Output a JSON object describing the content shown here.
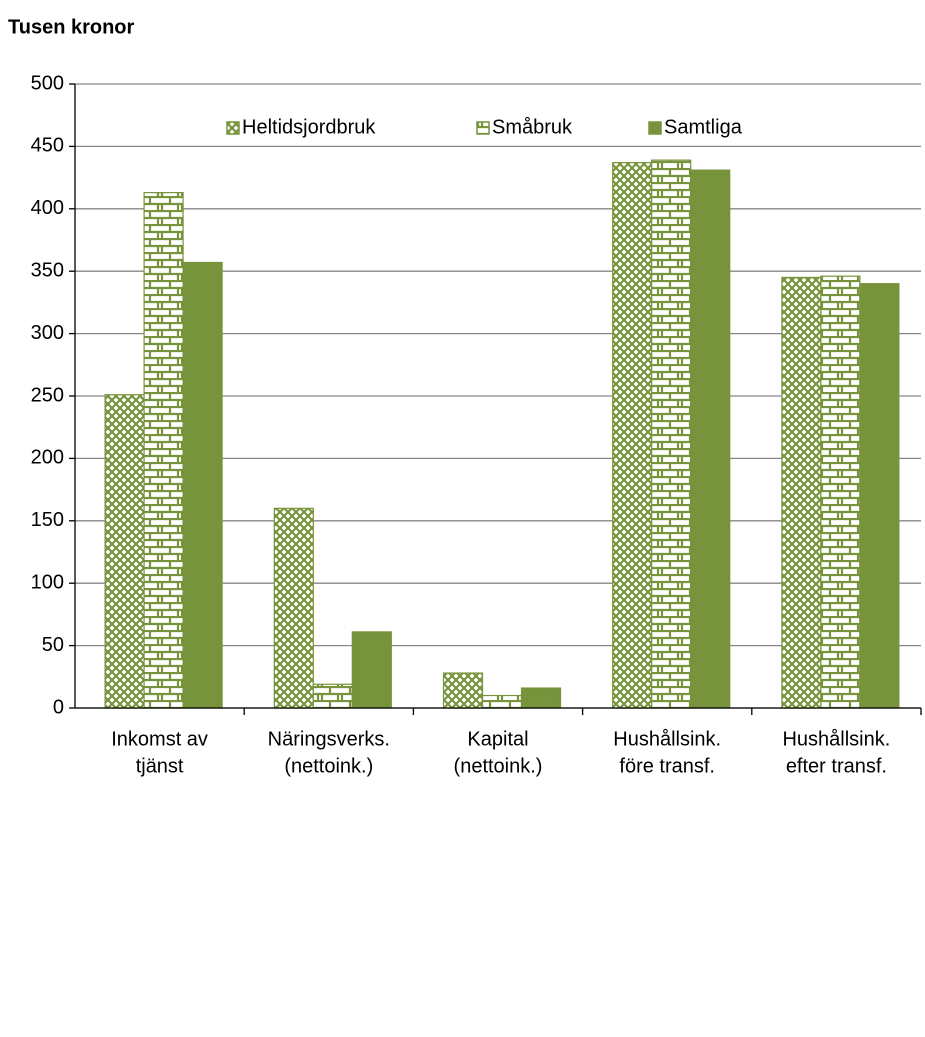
{
  "chart_data": {
    "type": "bar",
    "title": "Tusen kronor",
    "categories": [
      [
        "Inkomst av",
        "tjänst"
      ],
      [
        "Näringsverks.",
        "(nettoink.)"
      ],
      [
        "Kapital",
        "(nettoink.)"
      ],
      [
        "Hushållsink.",
        "före transf."
      ],
      [
        "Hushållsink.",
        "efter transf."
      ]
    ],
    "series": [
      {
        "name": "Heltidsjordbruk",
        "color": "#77933c",
        "pattern": "crosshatch",
        "values": [
          251,
          160,
          28,
          437,
          345
        ]
      },
      {
        "name": "Småbruk",
        "color": "#77933c",
        "pattern": "brick",
        "values": [
          413,
          19,
          10,
          439,
          346
        ]
      },
      {
        "name": "Samtliga",
        "color": "#77933c",
        "pattern": "solid",
        "values": [
          357,
          61,
          16,
          431,
          340
        ]
      }
    ],
    "ylim": [
      0,
      500
    ],
    "yticks": [
      0,
      50,
      100,
      150,
      200,
      250,
      300,
      350,
      400,
      450,
      500
    ],
    "grid": true,
    "legend": "top"
  }
}
